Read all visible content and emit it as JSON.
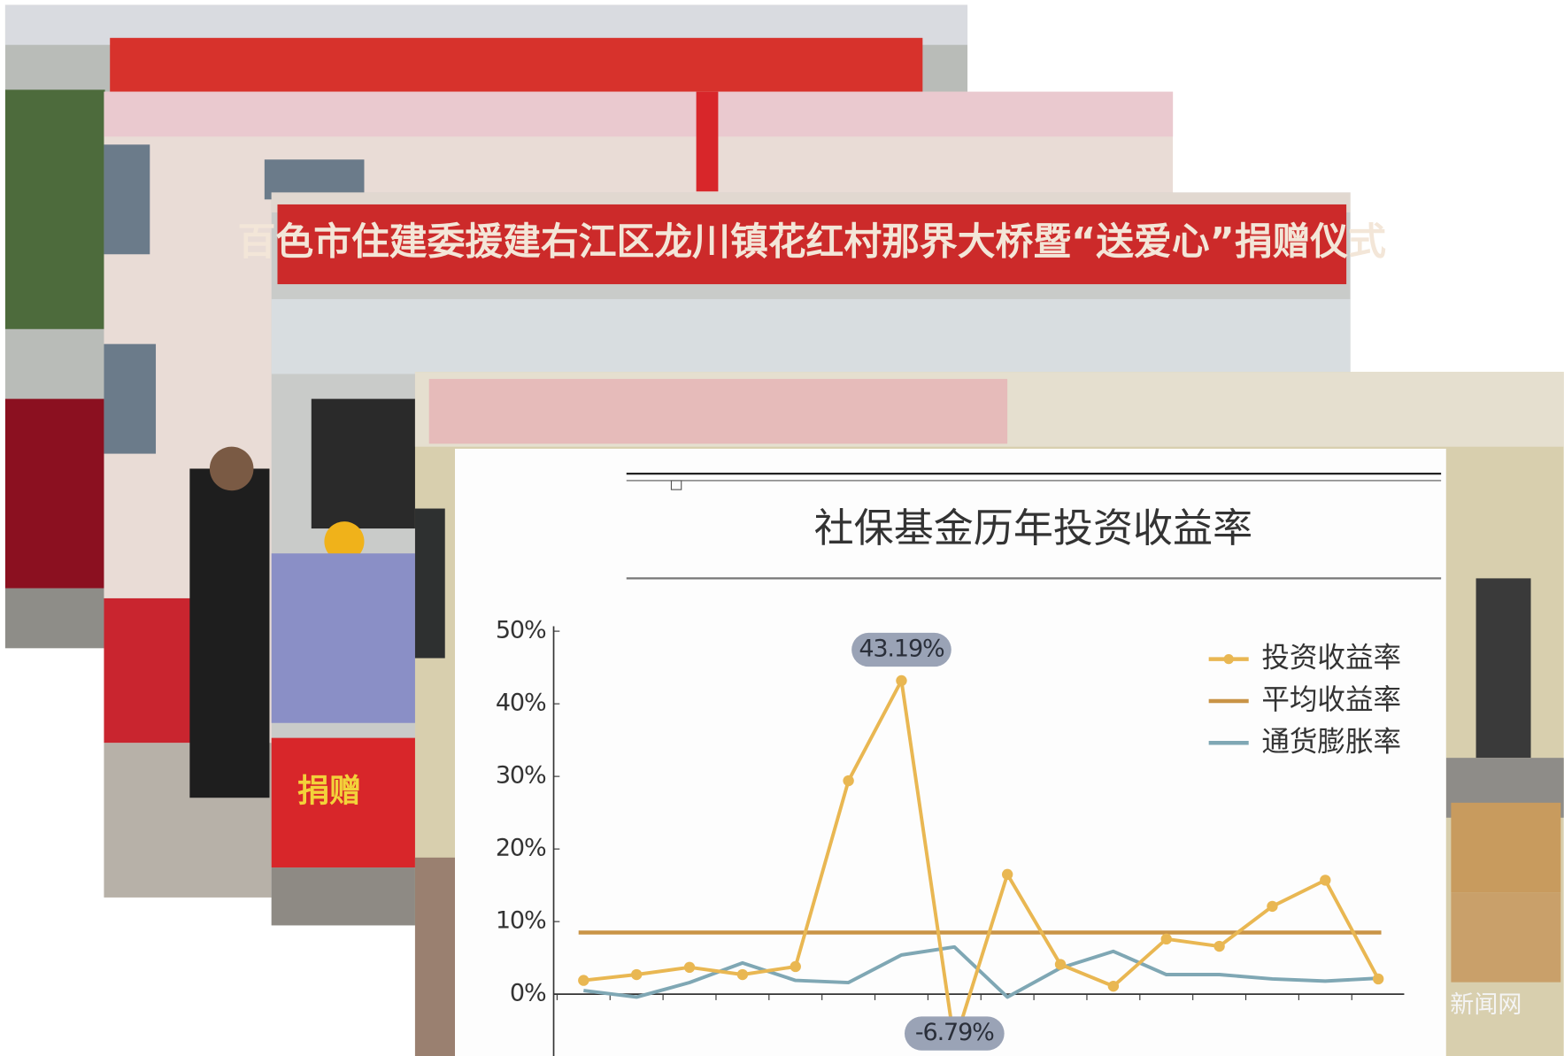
{
  "photos": {
    "banner": "百色市住建委援建右江区龙川镇花红村那界大桥暨“送爱心”捐赠仪式",
    "package_label": "捐赠",
    "watermark": "新闻网"
  },
  "chart_data": {
    "type": "line",
    "title": "社保基金历年投资收益率",
    "categories": [
      null,
      null,
      null,
      null,
      null,
      null,
      null,
      null,
      null,
      null,
      null,
      null,
      null,
      null,
      null,
      null
    ],
    "series": [
      {
        "name": "投资收益率",
        "color": "#e9b752",
        "values": [
          1.9,
          2.7,
          3.7,
          2.7,
          3.8,
          29.4,
          43.19,
          -6.79,
          16.5,
          4.1,
          1.1,
          7.6,
          6.6,
          12.1,
          15.7,
          2.1
        ],
        "value_labels": [
          null,
          null,
          null,
          null,
          null,
          null,
          "43.19%",
          "-6.79%",
          null,
          null,
          null,
          null,
          null,
          null,
          null,
          null
        ],
        "markers": true
      },
      {
        "name": "平均收益率",
        "color": "#c99447",
        "values": [
          8.5,
          8.5,
          8.5,
          8.5,
          8.5,
          8.5,
          8.5,
          8.5,
          8.5,
          8.5,
          8.5,
          8.5,
          8.5,
          8.5,
          8.5,
          8.5
        ],
        "markers": false
      },
      {
        "name": "通货膨胀率",
        "color": "#7fa7b4",
        "values": [
          0.5,
          -0.4,
          1.6,
          4.3,
          1.9,
          1.6,
          5.4,
          6.5,
          -0.4,
          3.6,
          5.9,
          2.7,
          2.7,
          2.1,
          1.8,
          2.2
        ],
        "markers": false
      }
    ],
    "ylim": [
      -8.5,
      50
    ],
    "yticks": [
      {
        "value": 0,
        "label": "0%"
      },
      {
        "value": 10,
        "label": "10%"
      },
      {
        "value": 20,
        "label": "20%"
      },
      {
        "value": 30,
        "label": "30%"
      },
      {
        "value": 40,
        "label": "40%"
      },
      {
        "value": 50,
        "label": "50%"
      }
    ],
    "grid": false,
    "legend": "top-right"
  }
}
